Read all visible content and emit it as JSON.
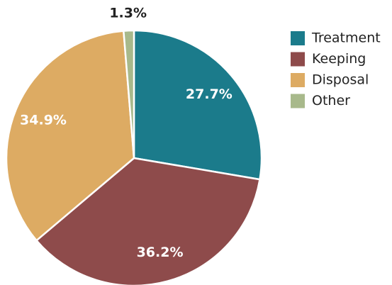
{
  "chart_data": {
    "type": "pie",
    "categories": [
      "Treatment",
      "Keeping",
      "Disposal",
      "Other"
    ],
    "values": [
      27.7,
      36.2,
      34.9,
      1.3
    ],
    "value_labels": [
      "27.7%",
      "36.2%",
      "34.9%",
      "1.3%"
    ],
    "colors": [
      "#1b7b8b",
      "#8e4b4b",
      "#ddab63",
      "#a8b98b"
    ],
    "legend": "right"
  }
}
